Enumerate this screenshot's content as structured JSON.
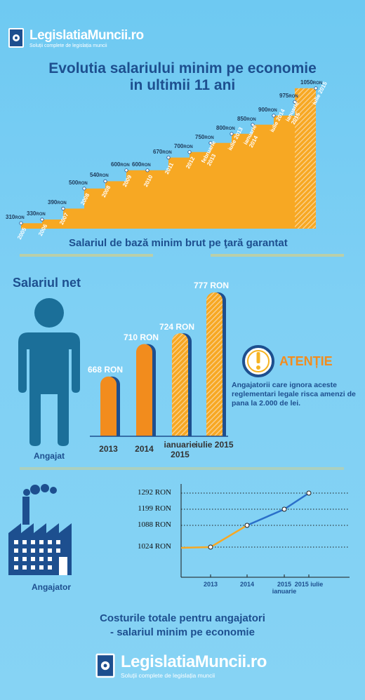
{
  "header": {
    "brand_name": "LegislatiaMuncii.ro",
    "brand_tagline": "Soluții complete de legislația muncii",
    "title_line1": "Evolutia salariului minim pe economie",
    "title_line2": "in ultimii 11 ani"
  },
  "chart_data": [
    {
      "type": "area",
      "title": "Evolutia salariului minim pe economie in ultimii 11 ani",
      "subtitle": "Salariul de bază minim brut pe ţară garantat",
      "unit": "RON",
      "categories": [
        "2005",
        "2006",
        "2007",
        "2008",
        "2008",
        "2009",
        "2010",
        "2011",
        "2012",
        "februarie 2013",
        "iulie 2013",
        "ianuarie 2014",
        "iulie 2014",
        "ianuarie 2015",
        "iulie 2015"
      ],
      "values": [
        310,
        330,
        390,
        500,
        540,
        600,
        600,
        670,
        700,
        750,
        800,
        850,
        900,
        975,
        1050
      ],
      "highlighted_last": 1
    },
    {
      "type": "bar",
      "title": "Salariul net",
      "unit": "RON",
      "categories": [
        "2013",
        "2014",
        "ianuarie 2015",
        "iulie 2015"
      ],
      "values": [
        668,
        710,
        724,
        777
      ],
      "labels": [
        "668 RON",
        "710 RON",
        "724 RON",
        "777 RON"
      ]
    },
    {
      "type": "line",
      "title": "Costurile totale pentru angajatori - salariul minim pe economie",
      "unit": "RON",
      "categories": [
        "2013",
        "2014",
        "2015 ianuarie",
        "2015 iulie"
      ],
      "values": [
        1024,
        1088,
        1199,
        1292
      ],
      "labels": [
        "1024 RON",
        "1088 RON",
        "1199 RON",
        "1292 RON"
      ]
    }
  ],
  "net": {
    "section_title": "Salariul net",
    "person_label": "Angajat"
  },
  "warning": {
    "title": "ATENȚIE",
    "text": "Angajatorii care ignora aceste reglementari legale risca amenzi de pana la 2.000 de lei."
  },
  "employer": {
    "label": "Angajator"
  },
  "footer": {
    "title_line1": "Costurile totale pentru angajatori",
    "title_line2": "- salariul minim pe economie",
    "brand_name": "LegislatiaMuncii.ro",
    "brand_tagline": "Soluții complete de legislația muncii"
  },
  "colors": {
    "orange": "#f7a823",
    "bar_orange": "#f28c1d",
    "navy": "#1d4f8f",
    "blue_line": "#2a6fc9",
    "person": "#1b6f99"
  }
}
